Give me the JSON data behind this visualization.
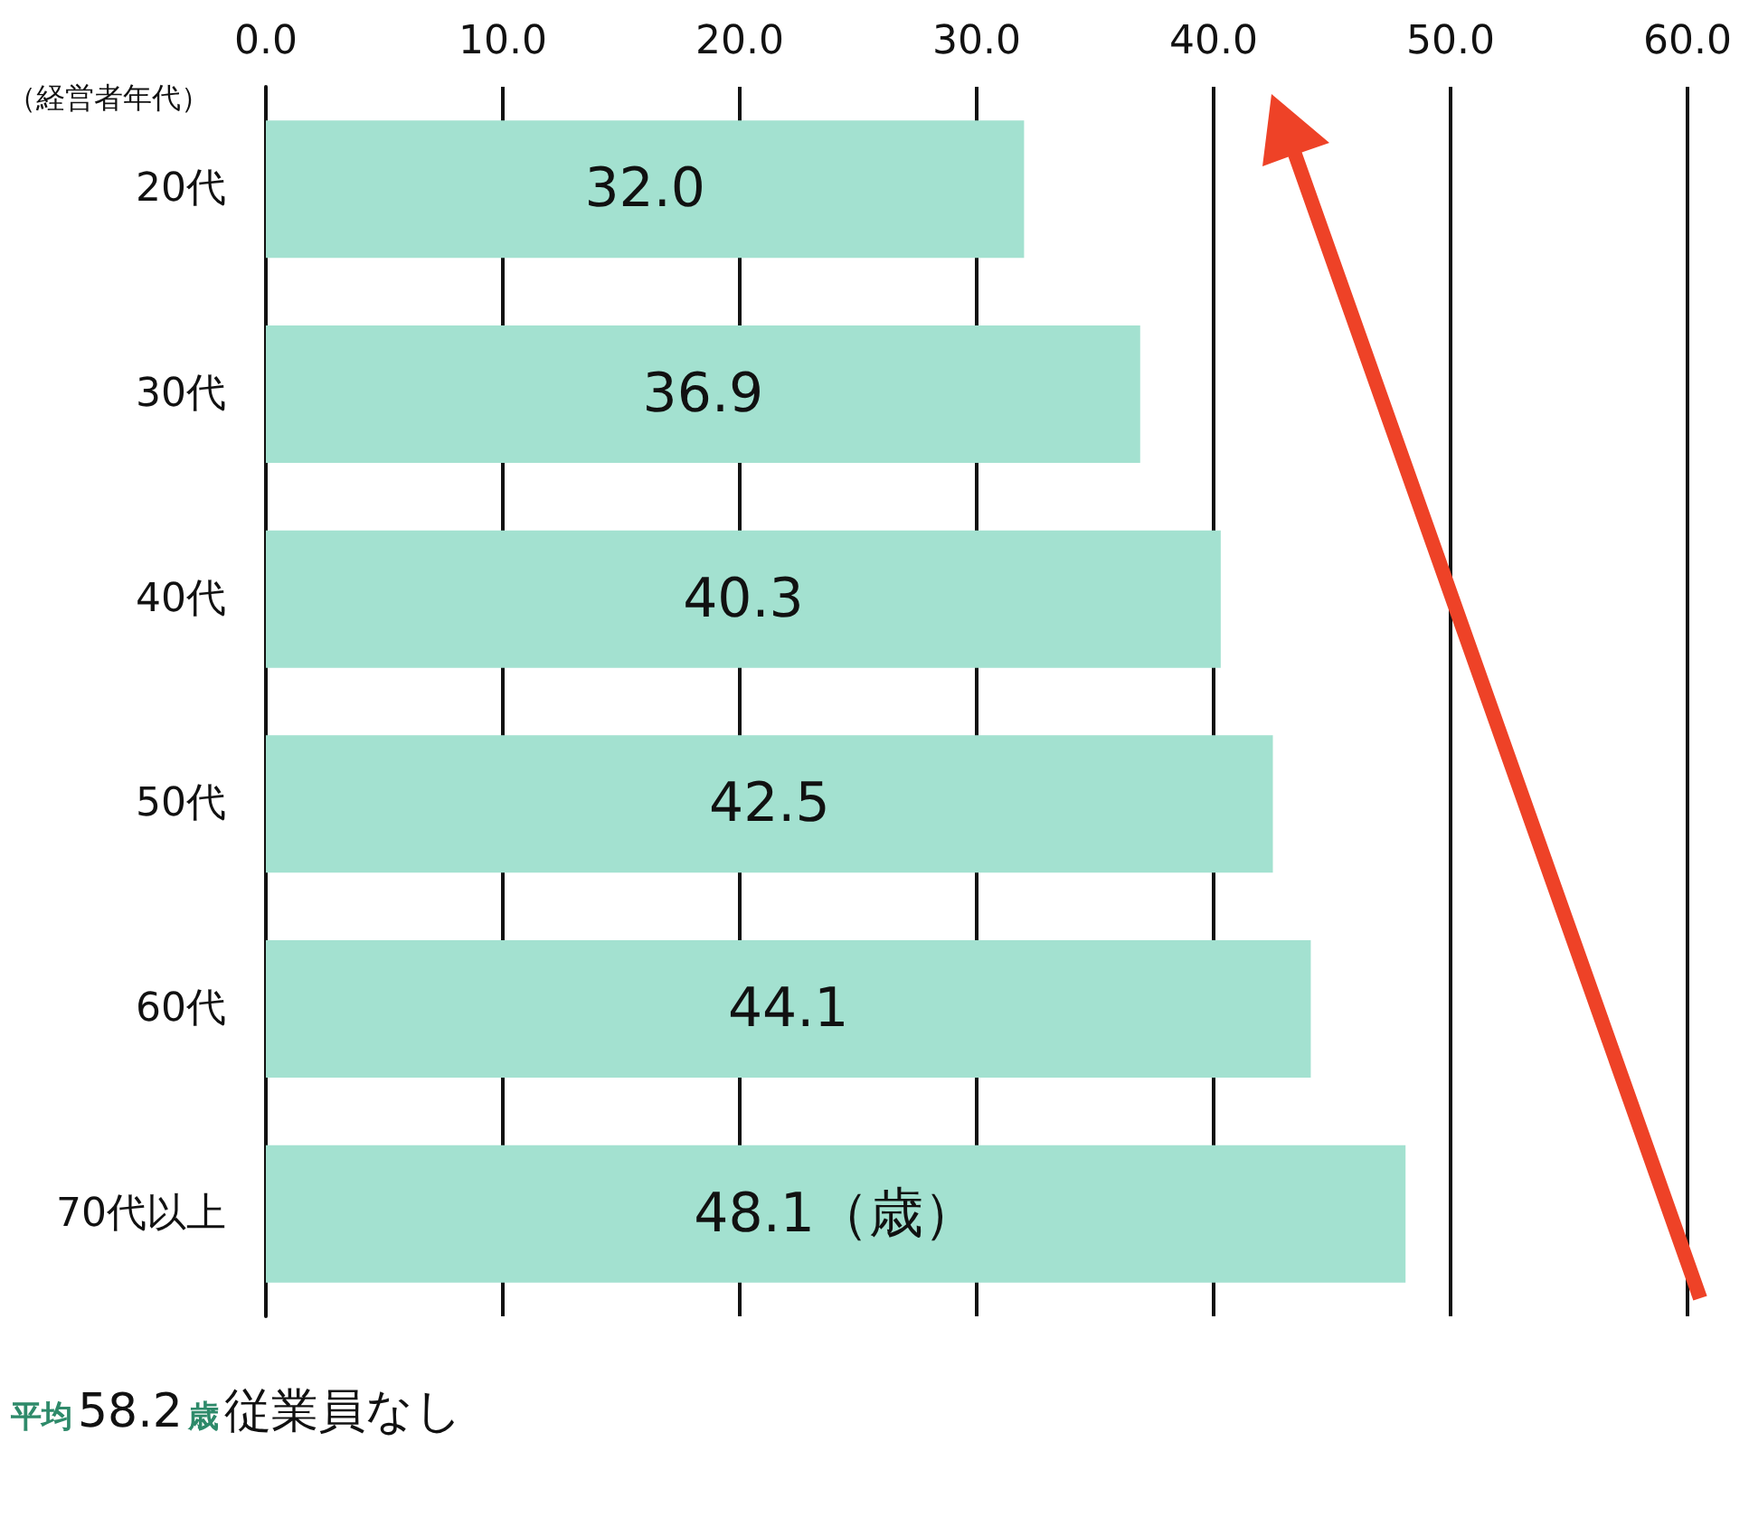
{
  "chart_data": {
    "type": "bar",
    "orientation": "horizontal",
    "ylabel": "（経営者年代）",
    "categories": [
      "20代",
      "30代",
      "40代",
      "50代",
      "60代",
      "70代以上"
    ],
    "values": [
      32.0,
      36.9,
      40.3,
      42.5,
      44.1,
      48.1
    ],
    "value_labels": [
      "32.0",
      "36.9",
      "40.3",
      "42.5",
      "44.1",
      "48.1（歳）"
    ],
    "color": "#a3e1d0",
    "xlim": [
      0,
      60
    ],
    "xticks": [
      {
        "value": 0,
        "label": "0.0"
      },
      {
        "value": 10,
        "label": "10.0"
      },
      {
        "value": 20,
        "label": "20.0"
      },
      {
        "value": 30,
        "label": "30.0"
      },
      {
        "value": 40,
        "label": "40.0"
      },
      {
        "value": 50,
        "label": "50.0"
      },
      {
        "value": 60,
        "label": "60.0"
      }
    ],
    "grid": "x",
    "annotations": [
      "平均",
      "58.2",
      "歳",
      "従業員なし"
    ]
  }
}
